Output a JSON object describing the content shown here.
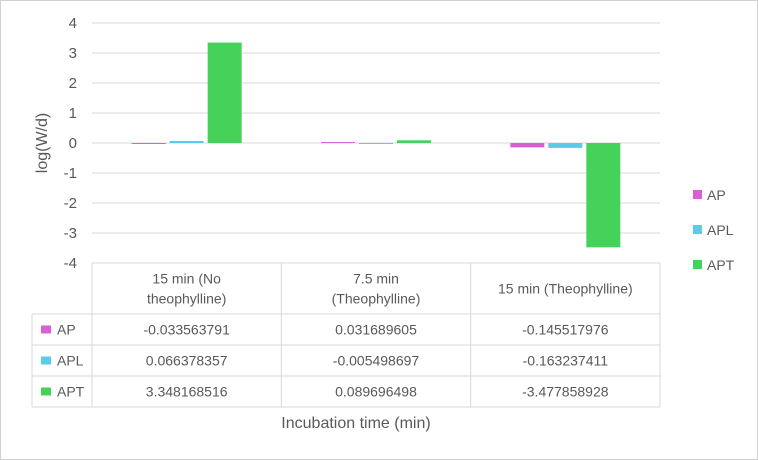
{
  "chart_data": {
    "type": "bar",
    "ylabel": "log(W/d)",
    "xlabel": "Incubation time (min)",
    "ylim": [
      -4,
      4
    ],
    "yticks": [
      4,
      3,
      2,
      1,
      0,
      -1,
      -2,
      -3,
      -4
    ],
    "grid": true,
    "legend_position": "right",
    "categories": [
      [
        "15 min (No",
        "theophylline)"
      ],
      [
        "7.5 min",
        "(Theophylline)"
      ],
      [
        "15 min (Theophylline)"
      ]
    ],
    "series": [
      {
        "name": "AP",
        "color": "#D95FD4",
        "values": [
          -0.033563791,
          0.031689605,
          -0.145517976
        ],
        "labels": [
          "-0.033563791",
          "0.031689605",
          "-0.145517976"
        ]
      },
      {
        "name": "APL",
        "color": "#5BCBEA",
        "values": [
          0.066378357,
          -0.005498697,
          -0.163237411
        ],
        "labels": [
          "0.066378357",
          "-0.005498697",
          "-0.163237411"
        ]
      },
      {
        "name": "APT",
        "color": "#45D15A",
        "values": [
          3.348168516,
          0.089696498,
          -3.477858928
        ],
        "labels": [
          "3.348168516",
          "0.089696498",
          "-3.477858928"
        ]
      }
    ]
  }
}
